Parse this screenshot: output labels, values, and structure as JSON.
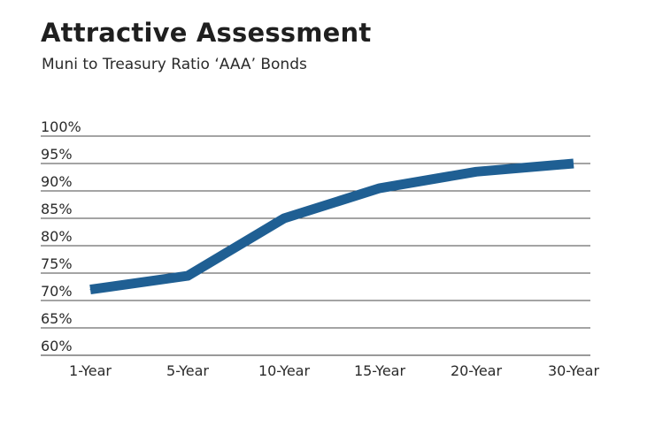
{
  "chart_data": {
    "type": "line",
    "title": "Attractive Assessment",
    "subtitle": "Muni to Treasury Ratio ‘AAA’ Bonds",
    "xlabel": "",
    "ylabel": "",
    "categories": [
      "1-Year",
      "5-Year",
      "10-Year",
      "15-Year",
      "20-Year",
      "30-Year"
    ],
    "series": [
      {
        "values": [
          72,
          74.5,
          85,
          90.5,
          93.5,
          95
        ],
        "color": "#1f5f93"
      }
    ],
    "ylim": [
      60,
      100
    ],
    "yticks": [
      60,
      65,
      70,
      75,
      80,
      85,
      90,
      95,
      100
    ],
    "ytick_labels": [
      "60%",
      "65%",
      "70%",
      "75%",
      "80%",
      "85%",
      "90%",
      "95%",
      "100%"
    ],
    "grid": true,
    "legend": "none"
  }
}
